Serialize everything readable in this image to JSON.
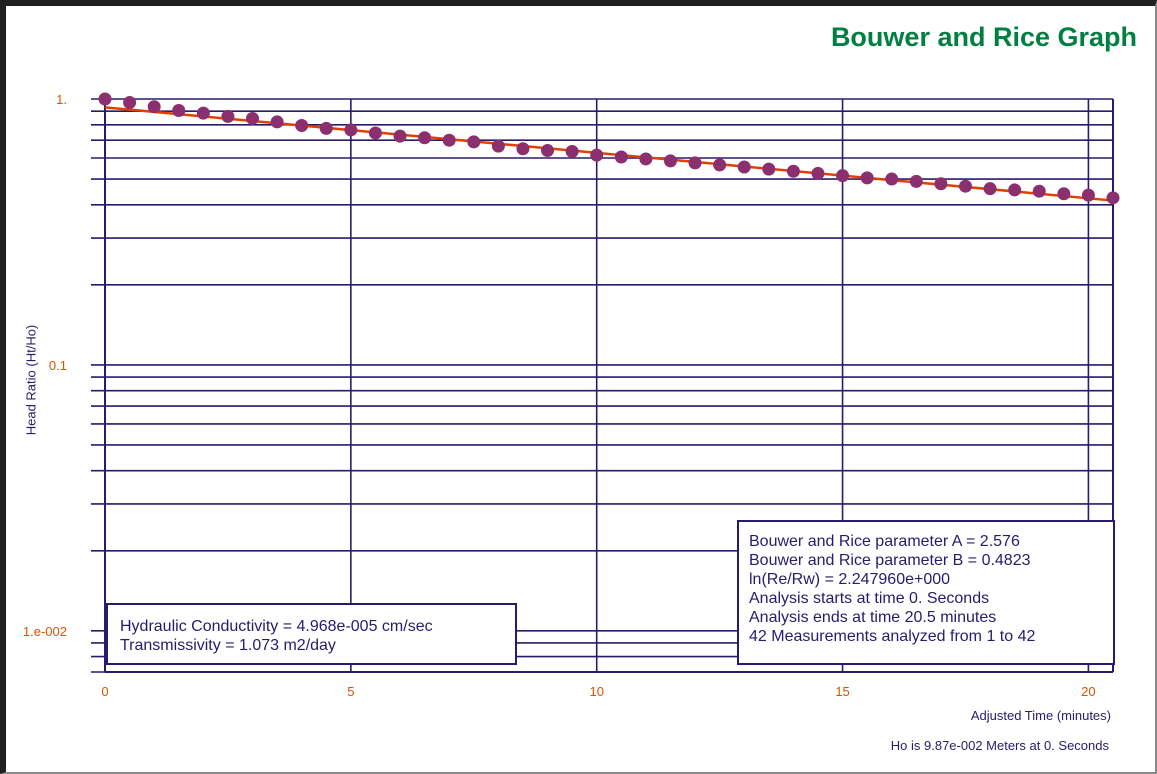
{
  "chart_title": "Bouwer and Rice Graph",
  "footnote": "Ho is 9.87e-002 Meters at 0. Seconds",
  "results": [
    "Hydraulic Conductivity = 4.968e-005 cm/sec",
    "Transmissivity = 1.073 m2/day"
  ],
  "parameters": [
    "Bouwer and Rice parameter A = 2.576",
    "Bouwer and Rice parameter B = 0.4823",
    "ln(Re/Rw) = 2.247960e+000",
    "Analysis starts at time 0. Seconds",
    "Analysis ends at time 20.5 minutes",
    "42 Measurements analyzed from 1 to 42"
  ],
  "colors": {
    "grid": "#2a1a6e",
    "tick_label": "#e05000",
    "points": "#8b2f6e",
    "fit_line": "#e04000",
    "title": "#008040"
  },
  "chart_data": {
    "type": "scatter",
    "title": "Bouwer and Rice Graph",
    "xlabel": "Adjusted Time (minutes)",
    "ylabel": "Head Ratio (Ht/Ho)",
    "xlim": [
      0,
      20.5
    ],
    "ylim": [
      0.007,
      1
    ],
    "y_scale": "log",
    "grid": true,
    "x_ticks": [
      0,
      5,
      10,
      15,
      20
    ],
    "x_tick_labels": [
      "0",
      "5",
      "10",
      "15",
      "20"
    ],
    "y_ticks": [
      1,
      0.1,
      0.01
    ],
    "y_tick_labels": [
      "1.",
      "0.1",
      "1.e-002"
    ],
    "series": [
      {
        "type": "scatter",
        "x": [
          0,
          0.5,
          1,
          1.5,
          2,
          2.5,
          3,
          3.5,
          4,
          4.5,
          5,
          5.5,
          6,
          6.5,
          7,
          7.5,
          8,
          8.5,
          9,
          9.5,
          10,
          10.5,
          11,
          11.5,
          12,
          12.5,
          13,
          13.5,
          14,
          14.5,
          15,
          15.5,
          16,
          16.5,
          17,
          17.5,
          18,
          18.5,
          19,
          19.5,
          20,
          20.5
        ],
        "y": [
          1.0,
          0.97,
          0.935,
          0.905,
          0.885,
          0.86,
          0.845,
          0.82,
          0.795,
          0.775,
          0.765,
          0.745,
          0.725,
          0.715,
          0.7,
          0.69,
          0.665,
          0.65,
          0.64,
          0.635,
          0.615,
          0.605,
          0.595,
          0.585,
          0.575,
          0.565,
          0.555,
          0.545,
          0.535,
          0.525,
          0.515,
          0.505,
          0.5,
          0.49,
          0.48,
          0.47,
          0.46,
          0.455,
          0.45,
          0.44,
          0.435,
          0.425
        ]
      },
      {
        "type": "line",
        "x": [
          0,
          20.5
        ],
        "y": [
          0.93,
          0.415
        ]
      }
    ]
  }
}
